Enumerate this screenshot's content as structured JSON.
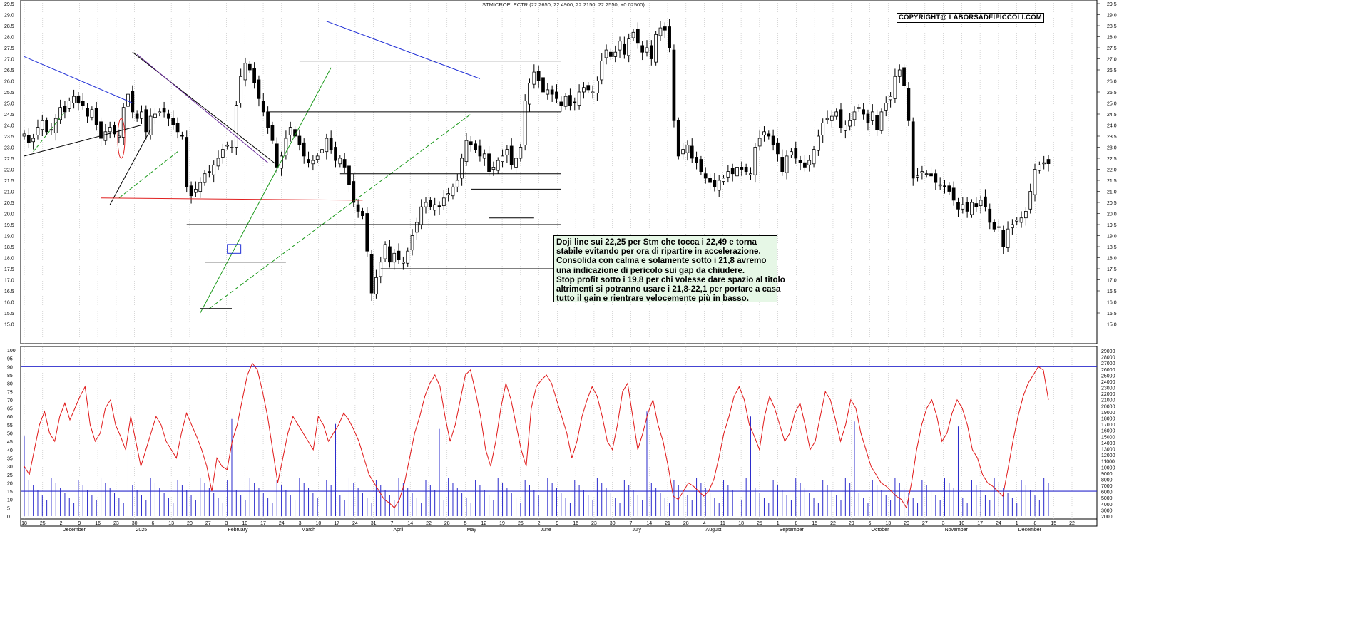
{
  "chart_data": [
    {
      "type": "candlestick",
      "title": "STMICROELECTR (22.2650, 22.4900, 22.2150, 22.2550, +0.02500)",
      "copyright": "COPYRIGHT@ LABORSADEIPICCOLI.COM",
      "ylim": [
        14.5,
        29.5
      ],
      "price_ticks": [
        "29.5",
        "29.0",
        "28.5",
        "28.0",
        "27.5",
        "27.0",
        "26.5",
        "26.0",
        "25.5",
        "25.0",
        "24.5",
        "24.0",
        "23.5",
        "23.0",
        "22.5",
        "22.0",
        "21.5",
        "21.0",
        "20.5",
        "20.0",
        "19.5",
        "19.0",
        "18.5",
        "18.0",
        "17.5",
        "17.0",
        "16.5",
        "16.0",
        "15.5",
        "15.0"
      ],
      "day_ticks": [
        "18",
        "25",
        "2",
        "9",
        "16",
        "23",
        "30",
        "6",
        "13",
        "20",
        "27",
        "3",
        "10",
        "17",
        "24",
        "3",
        "10",
        "17",
        "24",
        "31",
        "7",
        "14",
        "22",
        "28",
        "5",
        "12",
        "19",
        "26",
        "2",
        "9",
        "16",
        "23",
        "30",
        "7",
        "14",
        "21",
        "28",
        "4",
        "11",
        "18",
        "25",
        "1",
        "8",
        "15",
        "22",
        "29",
        "6",
        "13",
        "20",
        "27",
        "3",
        "10",
        "17",
        "24",
        "1",
        "8",
        "15",
        "22"
      ],
      "month_labels": [
        "December",
        "2025",
        "February",
        "March",
        "April",
        "May",
        "June",
        "July",
        "August",
        "September",
        "October",
        "November",
        "December"
      ],
      "closes": [
        23.6,
        23.2,
        23.4,
        23.9,
        24.2,
        23.7,
        23.8,
        24.3,
        24.8,
        24.6,
        25.1,
        25.3,
        25.0,
        24.9,
        24.4,
        24.7,
        24.0,
        23.4,
        23.7,
        23.9,
        23.6,
        23.5,
        24.8,
        25.4,
        24.6,
        24.3,
        24.6,
        23.7,
        24.4,
        24.5,
        24.6,
        24.6,
        24.3,
        24.0,
        23.7,
        23.5,
        21.2,
        20.8,
        21.1,
        21.4,
        21.8,
        21.9,
        22.2,
        22.5,
        22.9,
        23.1,
        23.0,
        24.9,
        26.2,
        26.8,
        26.5,
        25.9,
        25.2,
        24.6,
        23.9,
        23.3,
        22.1,
        22.6,
        23.4,
        23.9,
        23.5,
        23.1,
        22.6,
        22.3,
        22.4,
        22.6,
        22.9,
        23.4,
        22.9,
        22.4,
        22.5,
        22.1,
        21.3,
        20.5,
        20.1,
        19.9,
        18.3,
        16.4,
        17.1,
        17.8,
        18.6,
        17.8,
        18.2,
        17.9,
        17.8,
        18.3,
        19.0,
        19.6,
        20.3,
        20.5,
        20.3,
        20.4,
        20.3,
        20.7,
        20.9,
        21.2,
        21.5,
        22.5,
        23.3,
        23.1,
        22.9,
        22.6,
        22.7,
        21.9,
        22.1,
        22.4,
        22.6,
        22.9,
        22.2,
        22.5,
        23.0,
        25.1,
        25.9,
        26.4,
        26.0,
        25.5,
        25.6,
        25.4,
        25.2,
        24.9,
        25.3,
        24.9,
        25.0,
        25.5,
        25.7,
        25.6,
        25.5,
        26.0,
        26.9,
        27.4,
        27.1,
        27.3,
        27.8,
        27.2,
        27.9,
        28.2,
        27.7,
        27.3,
        27.5,
        27.0,
        28.1,
        28.4,
        28.3,
        27.5,
        24.2,
        22.6,
        22.9,
        23.1,
        22.5,
        22.3,
        21.9,
        21.6,
        21.4,
        21.2,
        21.5,
        21.6,
        21.9,
        21.8,
        22.1,
        22.0,
        21.9,
        21.8,
        23.0,
        23.4,
        23.7,
        23.5,
        23.1,
        22.7,
        21.9,
        22.6,
        22.8,
        22.5,
        22.3,
        22.1,
        22.4,
        22.9,
        23.5,
        24.1,
        24.3,
        24.4,
        24.6,
        23.9,
        24.0,
        24.2,
        24.6,
        24.8,
        24.5,
        24.1,
        24.6,
        23.8,
        24.6,
        25.0,
        25.3,
        26.2,
        26.5,
        25.8,
        24.2,
        21.6,
        21.7,
        21.9,
        21.8,
        21.7,
        21.4,
        21.3,
        21.2,
        21.0,
        20.6,
        20.2,
        20.4,
        20.1,
        20.5,
        20.3,
        20.6,
        20.3,
        19.6,
        19.3,
        19.4,
        18.5,
        19.3,
        19.5,
        19.7,
        19.8,
        20.1,
        21.0,
        22.0,
        22.2,
        22.3,
        22.255
      ],
      "indicator": {
        "ylim": [
          0,
          100
        ],
        "ticks": [
          "100",
          "95",
          "90",
          "85",
          "80",
          "75",
          "70",
          "65",
          "60",
          "55",
          "50",
          "45",
          "40",
          "35",
          "30",
          "25",
          "20",
          "15",
          "10",
          "5",
          "0"
        ],
        "levels": [
          90,
          15
        ],
        "values": [
          30,
          25,
          40,
          55,
          63,
          50,
          45,
          60,
          68,
          58,
          65,
          72,
          78,
          55,
          45,
          50,
          65,
          70,
          55,
          48,
          40,
          60,
          45,
          30,
          40,
          50,
          60,
          55,
          45,
          40,
          35,
          50,
          62,
          55,
          48,
          40,
          30,
          15,
          35,
          30,
          28,
          45,
          55,
          70,
          85,
          92,
          88,
          75,
          60,
          40,
          20,
          35,
          50,
          60,
          55,
          50,
          45,
          40,
          60,
          55,
          45,
          50,
          55,
          62,
          58,
          52,
          45,
          35,
          25,
          20,
          15,
          10,
          8,
          5,
          10,
          20,
          35,
          50,
          60,
          72,
          80,
          85,
          78,
          60,
          45,
          55,
          70,
          85,
          88,
          75,
          60,
          40,
          30,
          45,
          65,
          80,
          70,
          55,
          40,
          30,
          65,
          78,
          82,
          85,
          80,
          70,
          60,
          50,
          35,
          45,
          60,
          70,
          78,
          72,
          60,
          45,
          40,
          55,
          75,
          80,
          60,
          40,
          50,
          62,
          70,
          55,
          45,
          30,
          12,
          10,
          15,
          20,
          18,
          15,
          12,
          15,
          22,
          35,
          50,
          60,
          72,
          78,
          70,
          55,
          48,
          40,
          60,
          72,
          65,
          55,
          45,
          50,
          62,
          68,
          55,
          40,
          45,
          60,
          75,
          70,
          58,
          45,
          55,
          70,
          65,
          50,
          40,
          30,
          25,
          20,
          18,
          15,
          12,
          10,
          5,
          20,
          40,
          55,
          65,
          70,
          60,
          45,
          50,
          62,
          70,
          65,
          55,
          40,
          35,
          25,
          20,
          18,
          15,
          12,
          28,
          45,
          60,
          72,
          80,
          85,
          90,
          88,
          70
        ],
        "volume_ticks": [
          "29000",
          "28000",
          "27000",
          "26000",
          "25000",
          "24000",
          "23000",
          "22000",
          "21000",
          "20000",
          "19000",
          "18000",
          "17000",
          "16000",
          "15000",
          "14000",
          "13000",
          "12000",
          "11000",
          "10000",
          "9000",
          "8000",
          "7000",
          "6000",
          "5000",
          "4000",
          "3000",
          "2000"
        ]
      },
      "annotation": [
        "Doji line sui 22,25 per Stm che tocca i 22,49 e torna",
        "stabile evitando per ora di ripartire in accelerazione.",
        "Consolida con calma e solamente sotto i 21,8 avremo",
        "una indicazione di pericolo sui gap da chiudere.",
        "Stop profit sotto i 19,8 per chi volesse dare spazio al titolo",
        "altrimenti si potranno usare i 21,8-22,1 per portare a casa",
        "tutto il gain e rientrare velocemente più in basso."
      ],
      "colors": {
        "candle": "#000000",
        "trend_blue": "#1f2ed6",
        "trend_purple": "#6a2c9b",
        "trend_green": "#1c9a1c",
        "support_red": "#e02020",
        "oscillator": "#e01818",
        "volume": "#2a2acc",
        "annotation_bg": "#e6f7e6"
      }
    }
  ]
}
